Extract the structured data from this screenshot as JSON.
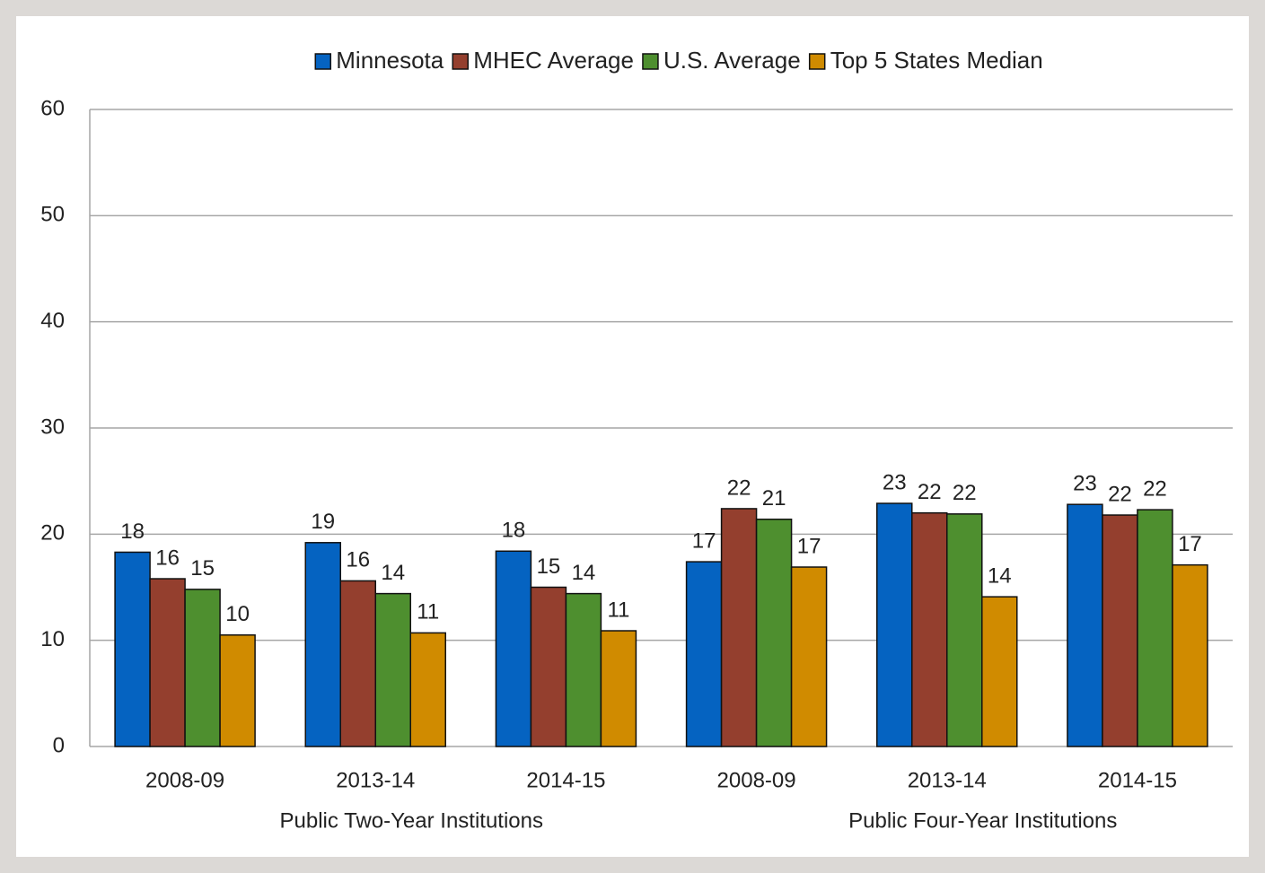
{
  "chart_data": {
    "type": "bar",
    "groups": [
      {
        "name": "Public Two-Year Institutions",
        "categories": [
          "2008-09",
          "2013-14",
          "2014-15"
        ]
      },
      {
        "name": "Public Four-Year Institutions",
        "categories": [
          "2008-09",
          "2013-14",
          "2014-15"
        ]
      }
    ],
    "series": [
      {
        "name": "Minnesota",
        "color": "#0563c1",
        "values": [
          18.3,
          19.2,
          18.4,
          17.4,
          22.9,
          22.8
        ],
        "value_labels": [
          "18",
          "19",
          "18",
          "17",
          "23",
          "23"
        ]
      },
      {
        "name": "MHEC Average",
        "color": "#943f2e",
        "values": [
          15.8,
          15.6,
          15.0,
          22.4,
          22.0,
          21.8
        ],
        "value_labels": [
          "16",
          "16",
          "15",
          "22",
          "22",
          "22"
        ]
      },
      {
        "name": "U.S. Average",
        "color": "#4e8f2f",
        "values": [
          14.8,
          14.4,
          14.4,
          21.4,
          21.9,
          22.3
        ],
        "value_labels": [
          "15",
          "14",
          "14",
          "21",
          "22",
          "22"
        ]
      },
      {
        "name": "Top 5 States Median",
        "color": "#d08b00",
        "values": [
          10.5,
          10.7,
          10.9,
          16.9,
          14.1,
          17.1
        ],
        "value_labels": [
          "10",
          "11",
          "11",
          "17",
          "14",
          "17"
        ]
      }
    ],
    "ylim": [
      0,
      60
    ],
    "yticks": [
      0,
      10,
      20,
      30,
      40,
      50,
      60
    ],
    "grid": true,
    "legend": "top"
  }
}
